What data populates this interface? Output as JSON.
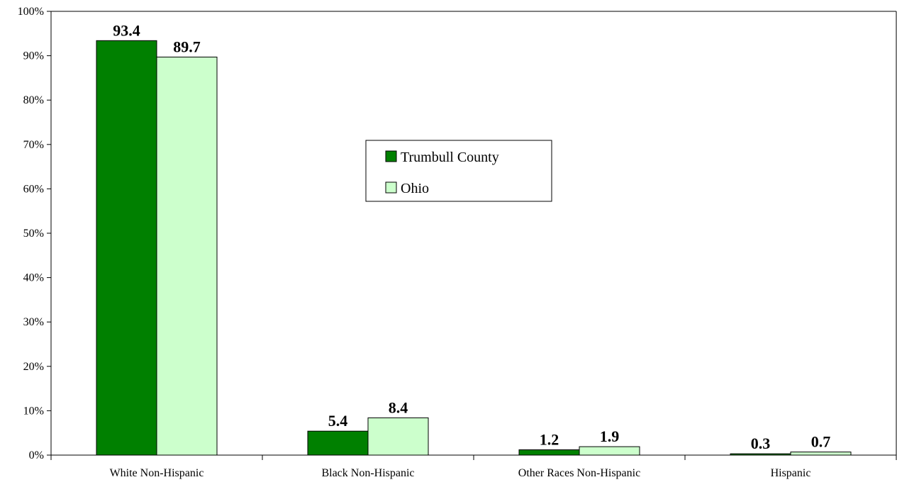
{
  "chart_data": {
    "type": "bar",
    "categories": [
      "White Non-Hispanic",
      "Black Non-Hispanic",
      "Other Races Non-Hispanic",
      "Hispanic"
    ],
    "series": [
      {
        "name": "Trumbull County",
        "values": [
          93.4,
          5.4,
          1.2,
          0.3
        ],
        "color": "#008000"
      },
      {
        "name": "Ohio",
        "values": [
          89.7,
          8.4,
          1.9,
          0.7
        ],
        "color": "#ccffcc"
      }
    ],
    "data_labels": {
      "series_0": [
        "93.4",
        "5.4",
        "1.2",
        "0.3"
      ],
      "series_1": [
        "89.7",
        "8.4",
        "1.9",
        "0.7"
      ]
    },
    "y_ticks": [
      "0%",
      "10%",
      "20%",
      "30%",
      "40%",
      "50%",
      "60%",
      "70%",
      "80%",
      "90%",
      "100%"
    ],
    "ylim": [
      0,
      100
    ],
    "grid": false,
    "legend_position": "center"
  }
}
